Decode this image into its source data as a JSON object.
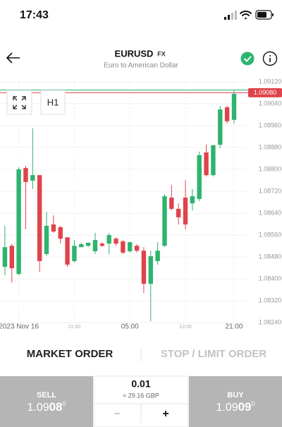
{
  "status_bar": {
    "time": "17:43"
  },
  "header": {
    "symbol": "EURUSD",
    "badge": "FX",
    "subtitle": "Euro to American Dollar"
  },
  "toolbar": {
    "timeframe": "H1"
  },
  "chart_data": {
    "type": "candlestick",
    "categories": [
      null,
      null,
      "2023 Nov 16",
      null,
      null,
      null,
      null,
      null,
      null,
      null,
      "21:00",
      null,
      null,
      null,
      null,
      null,
      null,
      null,
      "05:00",
      null,
      null,
      null,
      null,
      null,
      null,
      null,
      "13:00",
      null,
      null,
      null,
      null,
      null,
      null,
      "21:00"
    ],
    "open": [
      1.08444,
      1.08521,
      1.08418,
      1.08805,
      1.08759,
      1.08779,
      1.08491,
      1.08599,
      1.08589,
      1.08552,
      1.08465,
      1.08516,
      1.08521,
      1.08501,
      1.08529,
      1.08529,
      1.08547,
      1.08537,
      1.08501,
      1.08521,
      1.08503,
      1.08382,
      1.08465,
      1.08521,
      1.08697,
      1.08656,
      1.08697,
      1.08676,
      1.08692,
      1.08862,
      1.08779,
      1.0889,
      1.09027,
      1.08981
    ],
    "high": [
      1.08594,
      1.08529,
      1.08808,
      1.08813,
      1.0895,
      1.08779,
      1.08645,
      1.08632,
      1.08594,
      1.08552,
      1.08542,
      1.08532,
      1.08534,
      1.08568,
      1.08534,
      1.08568,
      1.08552,
      1.08542,
      1.08537,
      1.08527,
      1.08516,
      1.08503,
      1.08534,
      1.0871,
      1.08743,
      1.08676,
      1.08761,
      1.08728,
      1.08865,
      1.0889,
      1.0889,
      1.09032,
      1.09032,
      1.09089
    ],
    "low": [
      1.08413,
      1.08387,
      1.08413,
      1.08581,
      1.08728,
      1.08426,
      1.08485,
      1.08568,
      1.08529,
      1.08444,
      1.0846,
      1.08516,
      1.08516,
      1.08491,
      1.08516,
      1.08491,
      1.08521,
      1.08491,
      1.08496,
      1.08496,
      1.08349,
      1.08245,
      1.08452,
      1.08516,
      1.0865,
      1.08599,
      1.08581,
      1.0865,
      1.08684,
      1.08774,
      1.08774,
      1.08878,
      1.08968,
      1.08968
    ],
    "close": [
      1.08516,
      1.08439,
      1.088,
      1.08754,
      1.08779,
      1.08465,
      1.08594,
      1.08573,
      1.08547,
      1.08452,
      1.08521,
      1.08527,
      1.08532,
      1.08542,
      1.08521,
      1.0856,
      1.08529,
      1.08496,
      1.08534,
      1.08503,
      1.08382,
      1.08483,
      1.08503,
      1.08702,
      1.08656,
      1.08625,
      1.08599,
      1.08702,
      1.08852,
      1.08779,
      1.08888,
      1.09019,
      1.08976,
      1.09076
    ],
    "up_color": "#2db46e",
    "down_color": "#e0434b",
    "ylim": [
      1.0822,
      1.0913
    ],
    "yticks": [
      {
        "value": 1.0912,
        "label": "1.09120"
      },
      {
        "value": 1.0904,
        "label": "1.09040"
      },
      {
        "value": 1.0896,
        "label": "1.08960"
      },
      {
        "value": 1.0888,
        "label": "1.08880"
      },
      {
        "value": 1.088,
        "label": "1.08800"
      },
      {
        "value": 1.0872,
        "label": "1.08720"
      },
      {
        "value": 1.0864,
        "label": "1.08640"
      },
      {
        "value": 1.0856,
        "label": "1.08560"
      },
      {
        "value": 1.0848,
        "label": "1.08480"
      },
      {
        "value": 1.084,
        "label": "1.08400"
      },
      {
        "value": 1.0832,
        "label": "1.08320"
      },
      {
        "value": 1.0824,
        "label": "1.08240"
      }
    ],
    "price_lines": [
      {
        "value": 1.0909,
        "color": "#2db46e"
      },
      {
        "value": 1.0908,
        "label": "1.09080",
        "color": "#e0434b"
      }
    ],
    "grid": true
  },
  "tabs": [
    "MARKET ORDER",
    "STOP / LIMIT ORDER"
  ],
  "trade": {
    "sell": {
      "label": "SELL",
      "price_parts": [
        "1.09",
        "08",
        "0"
      ]
    },
    "amount": "0.01",
    "amount_note": "≈ 29.16 GBP",
    "minus": "−",
    "plus": "+",
    "buy": {
      "label": "BUY",
      "price_parts": [
        "1.09",
        "09",
        "0"
      ]
    }
  }
}
